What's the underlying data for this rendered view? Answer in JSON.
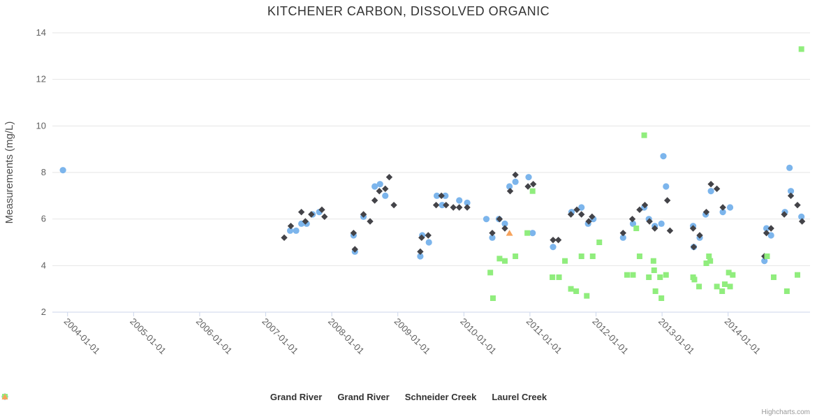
{
  "credit": "Highcharts.com",
  "chart_data": {
    "type": "scatter",
    "title": "KITCHENER CARBON, DISSOLVED ORGANIC",
    "xlabel": "",
    "ylabel": "Measurements (mg/L)",
    "ylim": [
      2,
      14
    ],
    "xlim": [
      2003.77,
      2015.24
    ],
    "x_unit": "decimal_year",
    "grid": "horizontal-only",
    "legend_position": "bottom-center",
    "yticks": [
      2,
      4,
      6,
      8,
      10,
      12,
      14
    ],
    "xticks": [
      {
        "v": 2004,
        "label": "2004-01-01"
      },
      {
        "v": 2005,
        "label": "2005-01-01"
      },
      {
        "v": 2006,
        "label": "2006-01-01"
      },
      {
        "v": 2007,
        "label": "2007-01-01"
      },
      {
        "v": 2008,
        "label": "2008-01-01"
      },
      {
        "v": 2009,
        "label": "2009-01-01"
      },
      {
        "v": 2010,
        "label": "2010-01-01"
      },
      {
        "v": 2011,
        "label": "2011-01-01"
      },
      {
        "v": 2012,
        "label": "2012-01-01"
      },
      {
        "v": 2013,
        "label": "2013-01-01"
      },
      {
        "v": 2014,
        "label": "2014-01-01"
      }
    ],
    "series": [
      {
        "name": "Grand River",
        "marker": "circle",
        "color": "#7cb5ec",
        "points": [
          [
            2003.93,
            8.1
          ],
          [
            2007.37,
            5.5
          ],
          [
            2007.46,
            5.5
          ],
          [
            2007.54,
            5.8
          ],
          [
            2007.62,
            5.8
          ],
          [
            2007.71,
            6.2
          ],
          [
            2007.81,
            6.3
          ],
          [
            2008.33,
            5.3
          ],
          [
            2008.35,
            4.6
          ],
          [
            2008.48,
            6.1
          ],
          [
            2008.65,
            7.4
          ],
          [
            2008.73,
            7.5
          ],
          [
            2008.81,
            7.0
          ],
          [
            2009.34,
            4.4
          ],
          [
            2009.37,
            5.3
          ],
          [
            2009.47,
            5.0
          ],
          [
            2009.59,
            7.0
          ],
          [
            2009.67,
            6.6
          ],
          [
            2009.72,
            7.0
          ],
          [
            2009.93,
            6.8
          ],
          [
            2010.05,
            6.7
          ],
          [
            2010.34,
            6.0
          ],
          [
            2010.43,
            5.2
          ],
          [
            2010.53,
            6.0
          ],
          [
            2010.62,
            5.8
          ],
          [
            2010.69,
            7.4
          ],
          [
            2010.78,
            7.6
          ],
          [
            2010.98,
            7.8
          ],
          [
            2011.04,
            5.4
          ],
          [
            2011.35,
            4.8
          ],
          [
            2011.63,
            6.3
          ],
          [
            2011.78,
            6.5
          ],
          [
            2011.88,
            5.8
          ],
          [
            2011.96,
            6.0
          ],
          [
            2012.41,
            5.2
          ],
          [
            2012.56,
            5.8
          ],
          [
            2012.73,
            6.5
          ],
          [
            2012.8,
            6.0
          ],
          [
            2012.89,
            5.7
          ],
          [
            2012.99,
            5.8
          ],
          [
            2013.02,
            8.7
          ],
          [
            2013.06,
            7.4
          ],
          [
            2013.47,
            5.7
          ],
          [
            2013.48,
            4.8
          ],
          [
            2013.57,
            5.2
          ],
          [
            2013.66,
            6.2
          ],
          [
            2013.74,
            7.2
          ],
          [
            2013.92,
            6.3
          ],
          [
            2014.03,
            6.5
          ],
          [
            2014.55,
            4.2
          ],
          [
            2014.58,
            5.6
          ],
          [
            2014.65,
            5.3
          ],
          [
            2014.86,
            6.3
          ],
          [
            2014.93,
            8.2
          ],
          [
            2014.95,
            7.2
          ],
          [
            2015.11,
            6.1
          ]
        ]
      },
      {
        "name": "Grand River",
        "marker": "diamond",
        "color": "#434348",
        "points": [
          [
            2007.28,
            5.2
          ],
          [
            2007.38,
            5.7
          ],
          [
            2007.54,
            6.3
          ],
          [
            2007.6,
            5.9
          ],
          [
            2007.69,
            6.2
          ],
          [
            2007.85,
            6.4
          ],
          [
            2007.89,
            6.1
          ],
          [
            2008.33,
            5.4
          ],
          [
            2008.35,
            4.7
          ],
          [
            2008.48,
            6.2
          ],
          [
            2008.58,
            5.9
          ],
          [
            2008.65,
            6.8
          ],
          [
            2008.72,
            7.2
          ],
          [
            2008.81,
            7.3
          ],
          [
            2008.87,
            7.8
          ],
          [
            2008.94,
            6.6
          ],
          [
            2009.34,
            4.6
          ],
          [
            2009.36,
            5.2
          ],
          [
            2009.46,
            5.3
          ],
          [
            2009.58,
            6.6
          ],
          [
            2009.66,
            7.0
          ],
          [
            2009.73,
            6.6
          ],
          [
            2009.84,
            6.5
          ],
          [
            2009.93,
            6.5
          ],
          [
            2010.05,
            6.5
          ],
          [
            2010.43,
            5.4
          ],
          [
            2010.54,
            6.0
          ],
          [
            2010.62,
            5.6
          ],
          [
            2010.7,
            7.2
          ],
          [
            2010.78,
            7.9
          ],
          [
            2010.97,
            7.4
          ],
          [
            2011.05,
            7.5
          ],
          [
            2011.35,
            5.1
          ],
          [
            2011.43,
            5.1
          ],
          [
            2011.62,
            6.2
          ],
          [
            2011.71,
            6.4
          ],
          [
            2011.78,
            6.2
          ],
          [
            2011.89,
            5.9
          ],
          [
            2011.94,
            6.1
          ],
          [
            2012.41,
            5.4
          ],
          [
            2012.55,
            6.0
          ],
          [
            2012.66,
            6.4
          ],
          [
            2012.74,
            6.6
          ],
          [
            2012.81,
            5.9
          ],
          [
            2012.89,
            5.6
          ],
          [
            2013.08,
            6.8
          ],
          [
            2013.12,
            5.5
          ],
          [
            2013.47,
            5.6
          ],
          [
            2013.48,
            4.8
          ],
          [
            2013.57,
            5.3
          ],
          [
            2013.67,
            6.3
          ],
          [
            2013.74,
            7.5
          ],
          [
            2013.83,
            7.3
          ],
          [
            2013.92,
            6.5
          ],
          [
            2014.55,
            4.4
          ],
          [
            2014.58,
            5.4
          ],
          [
            2014.65,
            5.6
          ],
          [
            2014.85,
            6.2
          ],
          [
            2014.95,
            7.0
          ],
          [
            2015.05,
            6.6
          ],
          [
            2015.12,
            5.9
          ]
        ]
      },
      {
        "name": "Schneider Creek",
        "marker": "square",
        "color": "#90ed7d",
        "points": [
          [
            2010.4,
            3.7
          ],
          [
            2010.44,
            2.6
          ],
          [
            2010.54,
            4.3
          ],
          [
            2010.62,
            4.2
          ],
          [
            2010.78,
            4.4
          ],
          [
            2010.96,
            5.4
          ],
          [
            2011.04,
            7.2
          ],
          [
            2011.34,
            3.5
          ],
          [
            2011.44,
            3.5
          ],
          [
            2011.53,
            4.2
          ],
          [
            2011.62,
            3.0
          ],
          [
            2011.7,
            2.9
          ],
          [
            2011.78,
            4.4
          ],
          [
            2011.86,
            2.7
          ],
          [
            2011.95,
            4.4
          ],
          [
            2012.05,
            5.0
          ],
          [
            2012.47,
            3.6
          ],
          [
            2012.56,
            3.6
          ],
          [
            2012.61,
            5.6
          ],
          [
            2012.66,
            4.4
          ],
          [
            2012.73,
            9.6
          ],
          [
            2012.8,
            3.5
          ],
          [
            2012.87,
            4.2
          ],
          [
            2012.88,
            3.8
          ],
          [
            2012.9,
            2.9
          ],
          [
            2012.97,
            3.5
          ],
          [
            2012.99,
            2.6
          ],
          [
            2013.06,
            3.6
          ],
          [
            2013.47,
            3.5
          ],
          [
            2013.49,
            3.4
          ],
          [
            2013.56,
            3.1
          ],
          [
            2013.67,
            4.1
          ],
          [
            2013.71,
            4.4
          ],
          [
            2013.73,
            4.2
          ],
          [
            2013.83,
            3.1
          ],
          [
            2013.91,
            2.9
          ],
          [
            2013.95,
            3.2
          ],
          [
            2014.01,
            3.7
          ],
          [
            2014.03,
            3.1
          ],
          [
            2014.07,
            3.6
          ],
          [
            2014.59,
            4.4
          ],
          [
            2014.69,
            3.5
          ],
          [
            2014.89,
            2.9
          ],
          [
            2015.05,
            3.6
          ],
          [
            2015.11,
            13.3
          ]
        ]
      },
      {
        "name": "Laurel Creek",
        "marker": "triangle",
        "color": "#f7a35c",
        "points": [
          [
            2010.69,
            5.4
          ]
        ]
      }
    ],
    "colors": {
      "grid": "#e6e6e6",
      "axis_line": "#ccd6eb",
      "tick_label": "#606060",
      "title": "#333333",
      "legend_text": "#333333"
    }
  }
}
